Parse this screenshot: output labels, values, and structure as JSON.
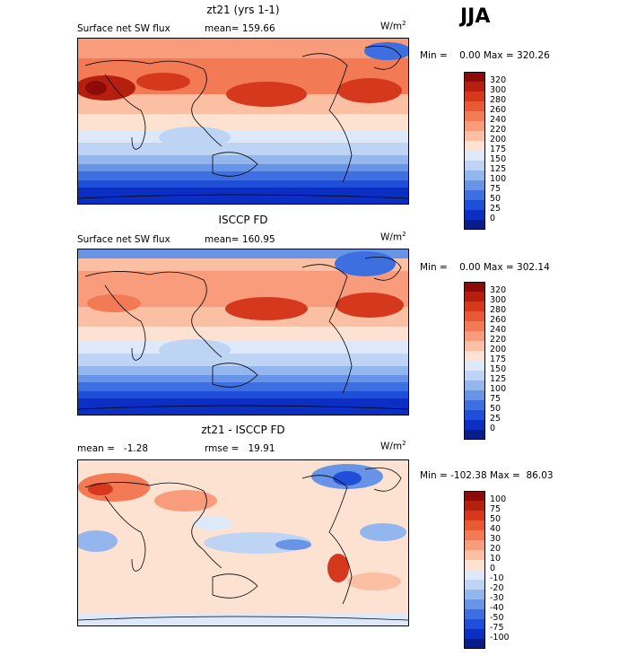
{
  "season_label": "JJA",
  "units_base": "W/m",
  "units_exp": "2",
  "panels": [
    {
      "title": "zt21 (yrs 1-1)",
      "left_text": "Surface net SW flux",
      "right_text": "mean= 159.66",
      "minmax": "Min =    0.00 Max = 320.26"
    },
    {
      "title": "ISCCP FD",
      "left_text": "Surface net SW flux",
      "right_text": "mean= 160.95",
      "minmax": "Min =    0.00 Max = 302.14"
    },
    {
      "title": "zt21 - ISCCP FD",
      "left_text": "mean =   -1.28",
      "right_text": "rmse =   19.91",
      "minmax": "Min = -102.38 Max =  86.03"
    }
  ],
  "chart_data": [
    {
      "type": "heatmap",
      "title": "zt21 (yrs 1-1)",
      "variable": "Surface net SW flux",
      "units": "W/m^2",
      "season": "JJA",
      "mean": 159.66,
      "min": 0.0,
      "max": 320.26,
      "colorbar_levels": [
        "320",
        "300",
        "280",
        "260",
        "240",
        "220",
        "200",
        "175",
        "150",
        "125",
        "100",
        "75",
        "50",
        "25",
        "0"
      ],
      "colorbar_colors": [
        "#8c0a0a",
        "#b5200e",
        "#d5381c",
        "#e85a35",
        "#f27a55",
        "#f89c7c",
        "#fbbfa3",
        "#fde2d2",
        "#dde8f8",
        "#bdd4f5",
        "#93b6ee",
        "#6894e8",
        "#3e6fe0",
        "#1f4ed9",
        "#0a2fc2",
        "#081c8a"
      ]
    },
    {
      "type": "heatmap",
      "title": "ISCCP FD",
      "variable": "Surface net SW flux",
      "units": "W/m^2",
      "season": "JJA",
      "mean": 160.95,
      "min": 0.0,
      "max": 302.14,
      "colorbar_levels": [
        "320",
        "300",
        "280",
        "260",
        "240",
        "220",
        "200",
        "175",
        "150",
        "125",
        "100",
        "75",
        "50",
        "25",
        "0"
      ],
      "colorbar_colors": [
        "#8c0a0a",
        "#b5200e",
        "#d5381c",
        "#e85a35",
        "#f27a55",
        "#f89c7c",
        "#fbbfa3",
        "#fde2d2",
        "#dde8f8",
        "#bdd4f5",
        "#93b6ee",
        "#6894e8",
        "#3e6fe0",
        "#1f4ed9",
        "#0a2fc2",
        "#081c8a"
      ]
    },
    {
      "type": "heatmap",
      "title": "zt21 - ISCCP FD",
      "units": "W/m^2",
      "season": "JJA",
      "mean": -1.28,
      "rmse": 19.91,
      "min": -102.38,
      "max": 86.03,
      "colorbar_levels": [
        "100",
        "75",
        "50",
        "40",
        "30",
        "20",
        "10",
        "0",
        "-10",
        "-20",
        "-30",
        "-40",
        "-50",
        "-75",
        "-100"
      ],
      "colorbar_colors": [
        "#8c0a0a",
        "#b5200e",
        "#d5381c",
        "#e85a35",
        "#f27a55",
        "#f89c7c",
        "#fbbfa3",
        "#fde2d2",
        "#dde8f8",
        "#bdd4f5",
        "#93b6ee",
        "#6894e8",
        "#3e6fe0",
        "#1f4ed9",
        "#0a2fc2",
        "#081c8a"
      ]
    }
  ]
}
